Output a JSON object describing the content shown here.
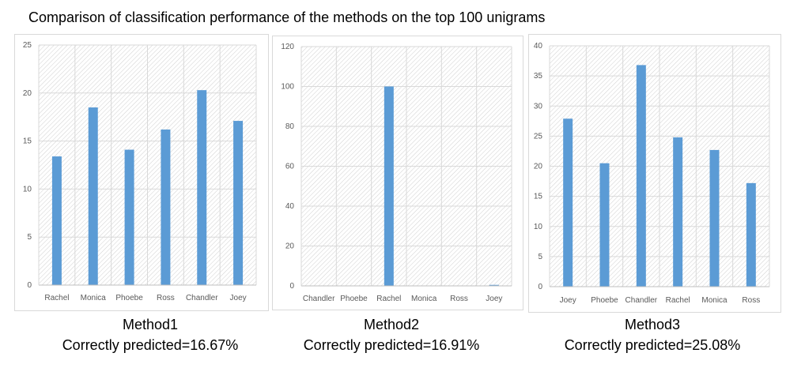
{
  "title": "Comparison of classification performance of the methods on the top 100 unigrams",
  "colors": {
    "bar": "#5b9bd5",
    "grid": "#d9d9d9",
    "hatch": "#d0d0d0",
    "axis": "#bfbfbf"
  },
  "captions": [
    {
      "method": "Method1",
      "accuracy": "Correctly predicted=16.67%"
    },
    {
      "method": "Method2",
      "accuracy": "Correctly predicted=16.91%"
    },
    {
      "method": "Method3",
      "accuracy": "Correctly predicted=25.08%"
    }
  ],
  "chart_data": [
    {
      "type": "bar",
      "title": "",
      "xlabel": "",
      "ylabel": "",
      "categories": [
        "Rachel",
        "Monica",
        "Phoebe",
        "Ross",
        "Chandler",
        "Joey"
      ],
      "values": [
        13.4,
        18.5,
        14.1,
        16.2,
        20.3,
        17.1
      ],
      "ylim": [
        0,
        25
      ],
      "yticks": [
        0,
        5,
        10,
        15,
        20,
        25
      ],
      "grid": true
    },
    {
      "type": "bar",
      "title": "",
      "xlabel": "",
      "ylabel": "",
      "categories": [
        "Chandler",
        "Phoebe",
        "Rachel",
        "Monica",
        "Ross",
        "Joey"
      ],
      "values": [
        0,
        0,
        100,
        0,
        0,
        0.5
      ],
      "ylim": [
        0,
        120
      ],
      "yticks": [
        0,
        20,
        40,
        60,
        80,
        100,
        120
      ],
      "grid": true
    },
    {
      "type": "bar",
      "title": "",
      "xlabel": "",
      "ylabel": "",
      "categories": [
        "Joey",
        "Phoebe",
        "Chandler",
        "Rachel",
        "Monica",
        "Ross"
      ],
      "values": [
        27.9,
        20.5,
        36.8,
        24.8,
        22.7,
        17.2
      ],
      "ylim": [
        0,
        40
      ],
      "yticks": [
        0,
        5,
        10,
        15,
        20,
        25,
        30,
        35,
        40
      ],
      "grid": true
    }
  ]
}
